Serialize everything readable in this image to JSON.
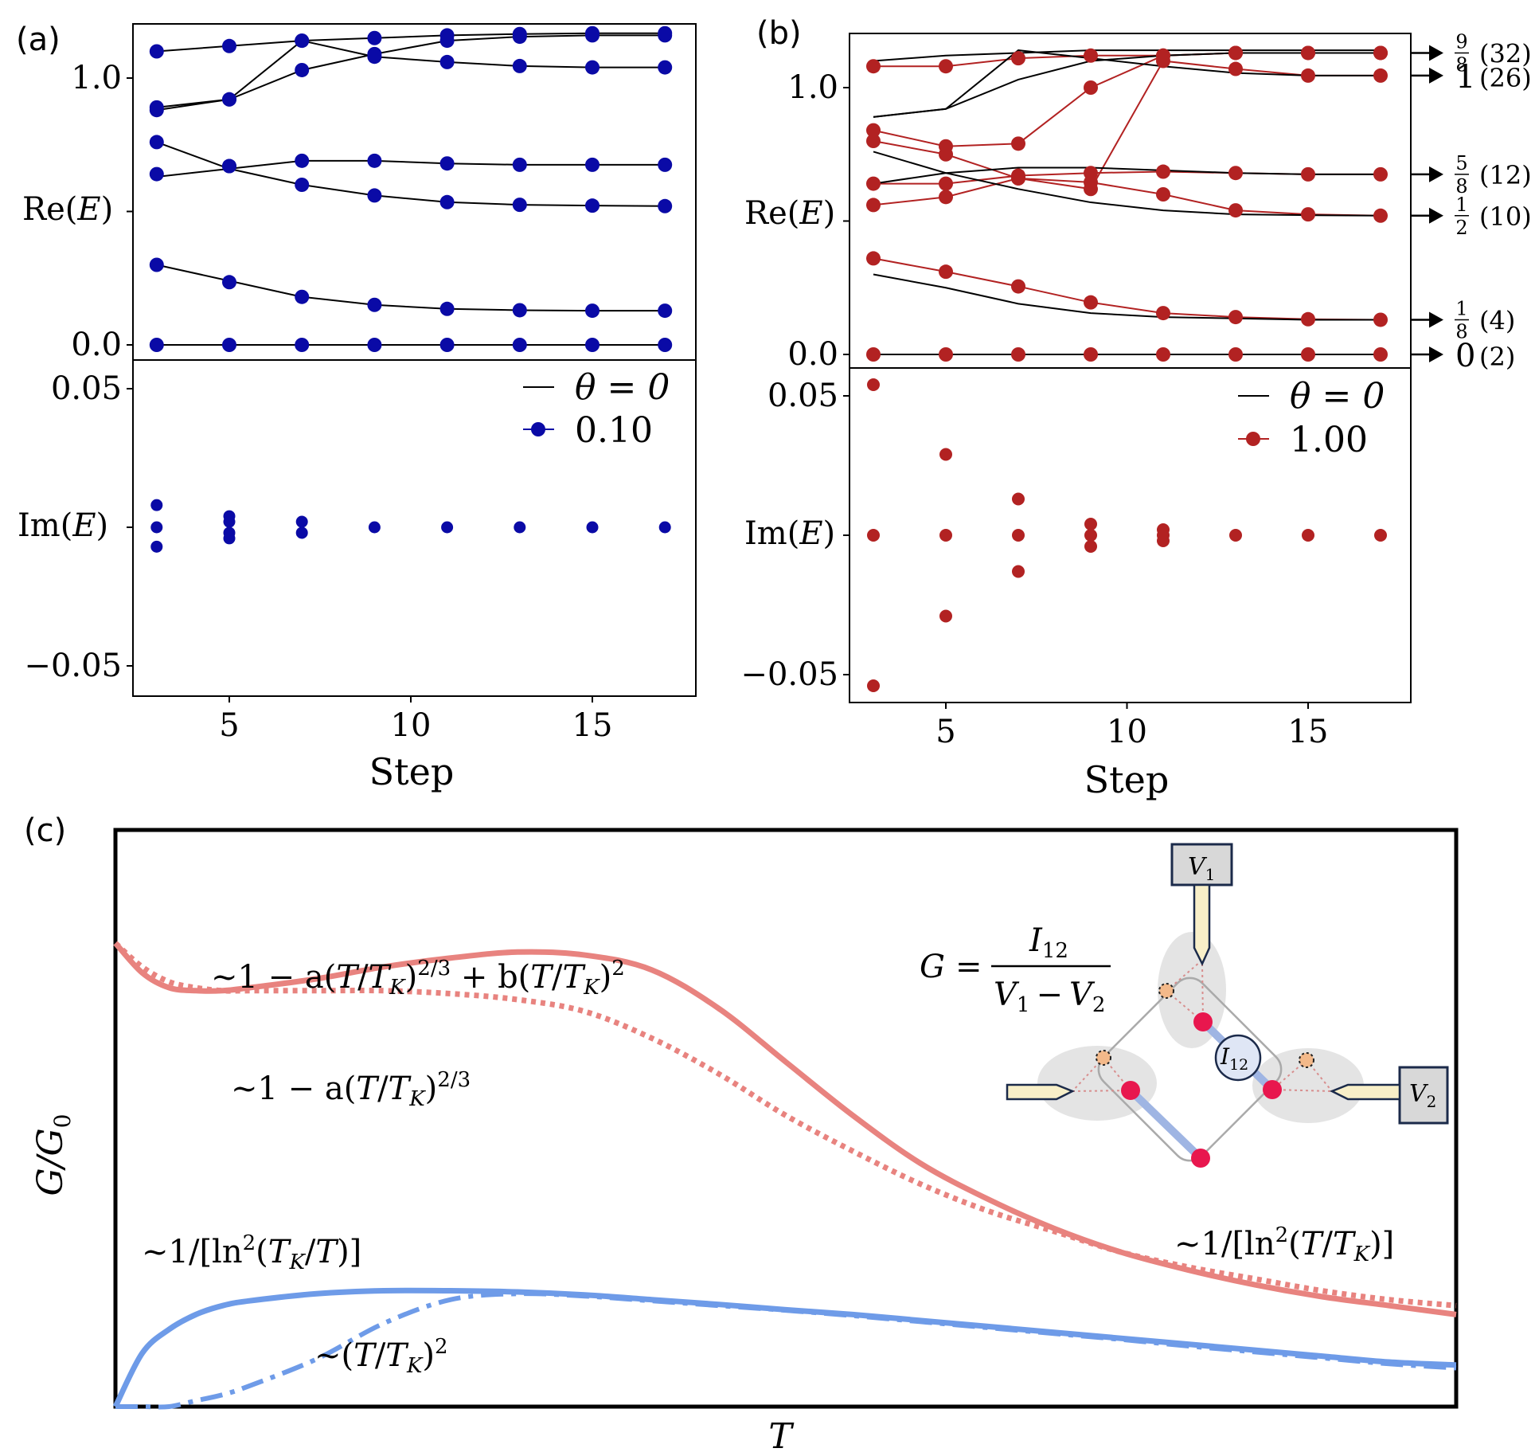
{
  "panels": {
    "a": {
      "tag": "(a)"
    },
    "b": {
      "tag": "(b)"
    },
    "c": {
      "tag": "(c)"
    }
  },
  "colors": {
    "blue": "#0a0aa6",
    "red": "#b22222",
    "black": "#000000",
    "pink": "#e8837f",
    "lightblue": "#6e9be8",
    "pinkdot": "#e8174e",
    "orangedot": "#f3b98a"
  },
  "chart_data": [
    {
      "id": "a",
      "type": "scatter",
      "title": "",
      "xlabel": "Step",
      "ylabel_top": "Re(E)",
      "ylabel_bottom": "Im(E)",
      "xlim": [
        2,
        17.5
      ],
      "xticks": [
        5,
        10,
        15
      ],
      "xtick_labels": [
        "5",
        "10",
        "15"
      ],
      "ylim_re": [
        -0.05,
        1.25
      ],
      "yticks_re": [
        0.0,
        1.0
      ],
      "ytick_labels_re": [
        "0.0",
        "1.0"
      ],
      "ylim_im": [
        -0.06,
        0.06
      ],
      "yticks_im": [
        0.05,
        -0.05
      ],
      "ytick_labels_im": [
        "0.05",
        "−0.05"
      ],
      "legend": {
        "position": "upper right of Im(E) panel",
        "line_label": "θ = 0",
        "marker_label": "0.10"
      },
      "x": [
        3,
        5,
        7,
        9,
        11,
        13,
        15,
        17
      ],
      "re_series_black": [
        [
          0.0,
          0.0,
          0.0,
          0.0,
          0.0,
          0.0,
          0.0,
          0.0
        ],
        [
          0.3,
          0.24,
          0.18,
          0.15,
          0.135,
          0.13,
          0.128,
          0.128
        ],
        [
          0.63,
          0.66,
          0.69,
          0.69,
          0.68,
          0.675,
          0.675,
          0.675
        ],
        [
          0.76,
          0.66,
          0.6,
          0.56,
          0.535,
          0.525,
          0.522,
          0.52
        ],
        [
          0.89,
          0.92,
          1.03,
          1.09,
          1.14,
          1.155,
          1.16,
          1.16
        ],
        [
          1.1,
          1.12,
          1.14,
          1.15,
          1.16,
          1.165,
          1.168,
          1.168
        ],
        [
          0.88,
          0.92,
          1.14,
          1.08,
          1.06,
          1.045,
          1.04,
          1.04
        ]
      ],
      "re_series_marker": [
        [
          0.0,
          0.0,
          0.0,
          0.0,
          0.0,
          0.0,
          0.0,
          0.0
        ],
        [
          0.3,
          0.235,
          0.18,
          0.15,
          0.135,
          0.13,
          0.128,
          0.128
        ],
        [
          0.64,
          0.67,
          0.69,
          0.69,
          0.68,
          0.675,
          0.675,
          0.675
        ],
        [
          0.76,
          0.67,
          0.6,
          0.56,
          0.535,
          0.525,
          0.522,
          0.52
        ],
        [
          0.89,
          0.92,
          1.03,
          1.09,
          1.14,
          1.155,
          1.16,
          1.16
        ],
        [
          1.1,
          1.12,
          1.14,
          1.15,
          1.16,
          1.165,
          1.168,
          1.168
        ],
        [
          0.88,
          0.92,
          1.14,
          1.08,
          1.06,
          1.045,
          1.04,
          1.04
        ]
      ],
      "im_points": [
        [
          3,
          0.008
        ],
        [
          3,
          0.0
        ],
        [
          3,
          -0.007
        ],
        [
          5,
          0.004
        ],
        [
          5,
          0.002
        ],
        [
          5,
          -0.002
        ],
        [
          5,
          -0.004
        ],
        [
          7,
          0.002
        ],
        [
          7,
          -0.002
        ],
        [
          9,
          0.0
        ],
        [
          11,
          0.0
        ],
        [
          13,
          0.0
        ],
        [
          15,
          0.0
        ],
        [
          17,
          0.0
        ]
      ]
    },
    {
      "id": "b",
      "type": "scatter",
      "title": "",
      "xlabel": "Step",
      "ylabel_top": "Re(E)",
      "ylabel_bottom": "Im(E)",
      "xlim": [
        2,
        17.5
      ],
      "xticks": [
        5,
        10,
        15
      ],
      "xtick_labels": [
        "5",
        "10",
        "15"
      ],
      "ylim_re": [
        -0.05,
        1.2
      ],
      "yticks_re": [
        0.0,
        1.0
      ],
      "ytick_labels_re": [
        "0.0",
        "1.0"
      ],
      "ylim_im": [
        -0.06,
        0.06
      ],
      "yticks_im": [
        0.05,
        -0.05
      ],
      "ytick_labels_im": [
        "0.05",
        "−0.05"
      ],
      "legend": {
        "position": "upper right of Im(E) panel",
        "line_label": "θ = 0",
        "marker_label": "1.00"
      },
      "x": [
        3,
        5,
        7,
        9,
        11,
        13,
        15,
        17
      ],
      "re_series_black": [
        [
          0.0,
          0.0,
          0.0,
          0.0,
          0.0,
          0.0,
          0.0,
          0.0
        ],
        [
          0.3,
          0.25,
          0.19,
          0.155,
          0.14,
          0.135,
          0.13,
          0.13
        ],
        [
          0.64,
          0.68,
          0.7,
          0.7,
          0.69,
          0.68,
          0.675,
          0.675
        ],
        [
          0.76,
          0.68,
          0.62,
          0.57,
          0.54,
          0.525,
          0.522,
          0.52
        ],
        [
          0.89,
          0.92,
          1.03,
          1.1,
          1.12,
          1.13,
          1.13,
          1.13
        ],
        [
          1.1,
          1.12,
          1.13,
          1.14,
          1.14,
          1.14,
          1.14,
          1.14
        ],
        [
          0.89,
          0.92,
          1.14,
          1.11,
          1.08,
          1.055,
          1.045,
          1.045
        ]
      ],
      "re_series_marker": [
        [
          0.0,
          0.0,
          0.0,
          0.0,
          0.0,
          0.0,
          0.0,
          0.0
        ],
        [
          0.36,
          0.31,
          0.255,
          0.195,
          0.155,
          0.14,
          0.132,
          0.13
        ],
        [
          0.64,
          0.64,
          0.67,
          0.68,
          0.685,
          0.68,
          0.675,
          0.675
        ],
        [
          0.56,
          0.59,
          0.66,
          0.645,
          0.6,
          0.54,
          0.525,
          0.52
        ],
        [
          0.84,
          0.78,
          0.79,
          1.0,
          1.12,
          1.13,
          1.13,
          1.13
        ],
        [
          1.08,
          1.08,
          1.11,
          1.12,
          1.12,
          1.13,
          1.13,
          1.13
        ],
        [
          0.8,
          0.75,
          0.66,
          0.62,
          1.1,
          1.07,
          1.045,
          1.045
        ]
      ],
      "right_annotations": [
        {
          "num": "9",
          "den": "8",
          "count": "(32)",
          "y": 1.13
        },
        {
          "num": "",
          "den": "",
          "whole": "1",
          "count": "(26)",
          "y": 1.045
        },
        {
          "num": "5",
          "den": "8",
          "count": "(12)",
          "y": 0.675
        },
        {
          "num": "1",
          "den": "2",
          "count": "(10)",
          "y": 0.52
        },
        {
          "num": "1",
          "den": "8",
          "count": "(4)",
          "y": 0.13
        },
        {
          "num": "",
          "den": "",
          "whole": "0",
          "count": "(2)",
          "y": 0.0
        }
      ],
      "im_points": [
        [
          3,
          0.054
        ],
        [
          3,
          0.0
        ],
        [
          3,
          -0.054
        ],
        [
          5,
          0.029
        ],
        [
          5,
          0.0
        ],
        [
          5,
          -0.029
        ],
        [
          7,
          0.013
        ],
        [
          7,
          0.0
        ],
        [
          7,
          -0.013
        ],
        [
          9,
          0.004
        ],
        [
          9,
          0.0
        ],
        [
          9,
          -0.004
        ],
        [
          11,
          0.002
        ],
        [
          11,
          0.0
        ],
        [
          11,
          -0.002
        ],
        [
          13,
          0.0
        ],
        [
          15,
          0.0
        ],
        [
          17,
          0.0
        ]
      ]
    },
    {
      "id": "c",
      "type": "line",
      "title": "",
      "xlabel": "T",
      "ylabel": "G/G₀",
      "grid": false,
      "x": [
        0.0,
        0.02,
        0.04,
        0.06,
        0.08,
        0.1,
        0.15,
        0.2,
        0.25,
        0.3,
        0.35,
        0.4,
        0.45,
        0.5,
        0.55,
        0.6,
        0.65,
        0.7,
        0.75,
        0.8,
        0.85,
        0.9,
        0.95,
        1.0
      ],
      "series": [
        {
          "style": "solid",
          "color": "pink",
          "values": [
            0.78,
            0.73,
            0.705,
            0.7,
            0.7,
            0.705,
            0.72,
            0.74,
            0.755,
            0.765,
            0.76,
            0.735,
            0.67,
            0.58,
            0.49,
            0.41,
            0.35,
            0.3,
            0.26,
            0.23,
            0.205,
            0.185,
            0.17,
            0.155
          ]
        },
        {
          "style": "dotted",
          "color": "pink",
          "values": [
            0.78,
            0.74,
            0.715,
            0.705,
            0.7,
            0.7,
            0.7,
            0.7,
            0.695,
            0.685,
            0.665,
            0.62,
            0.56,
            0.49,
            0.43,
            0.375,
            0.33,
            0.295,
            0.26,
            0.235,
            0.215,
            0.195,
            0.18,
            0.17
          ]
        },
        {
          "style": "solid",
          "color": "lightblue",
          "values": [
            0.0,
            0.09,
            0.13,
            0.155,
            0.17,
            0.178,
            0.19,
            0.195,
            0.195,
            0.193,
            0.188,
            0.18,
            0.172,
            0.163,
            0.155,
            0.145,
            0.135,
            0.125,
            0.115,
            0.105,
            0.095,
            0.085,
            0.075,
            0.07
          ]
        },
        {
          "style": "dashdot",
          "color": "lightblue",
          "values": [
            0.0,
            0.0,
            0.0,
            0.01,
            0.02,
            0.035,
            0.08,
            0.14,
            0.18,
            0.19,
            0.186,
            0.178,
            0.17,
            0.162,
            0.153,
            0.143,
            0.133,
            0.123,
            0.113,
            0.102,
            0.092,
            0.082,
            0.072,
            0.065
          ]
        }
      ],
      "annotations": {
        "top_fit": "~1 − a(T/T_K)^{2/3} + b(T/T_K)^2",
        "mid_fit": "~1 − a(T/T_K)^{2/3}",
        "low_fit": "~1/[ln²(T_K/T)]",
        "quad_fit": "~(T/T_K)²",
        "high_fit": "~1/[ln²(T/T_K)]"
      }
    }
  ],
  "inset": {
    "formula_G": "G",
    "formula_eq": "=",
    "formula_num": "I",
    "formula_num_sub": "12",
    "formula_den_a": "V",
    "formula_den_a_sub": "1",
    "formula_den_minus": "−",
    "formula_den_b": "V",
    "formula_den_b_sub": "2",
    "v1_label": "V",
    "v1_sub": "1",
    "v2_label": "V",
    "v2_sub": "2",
    "i12_label": "I",
    "i12_sub": "12"
  },
  "text": {
    "re_label_a": "Re(",
    "re_label_e": "E",
    "re_label_close": ")",
    "im_label_a": "Im(",
    "im_label_e": "E",
    "im_label_close": ")",
    "tilde": "~",
    "T": "T",
    "K": "K",
    "G": "G",
    "G0sub": "0",
    "slash": "/",
    "t23": "2/3",
    "t2": "2",
    "one_minus_a": "~1 − a(",
    "plus_b": " + b(",
    "paren_close": ")",
    "ln_open_a": "~1/[ln",
    "ln_open_b": "(",
    "ln_close": ")]",
    "quad_open": "~("
  }
}
